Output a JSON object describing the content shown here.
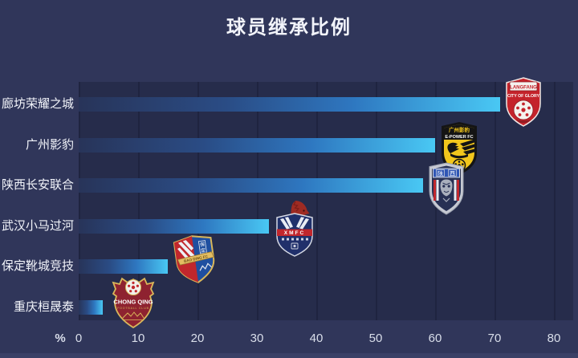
{
  "title": "球员继承比例",
  "chart_data": {
    "type": "bar",
    "orientation": "horizontal",
    "title": "球员继承比例",
    "categories": [
      "廊坊荣耀之城",
      "广州影豹",
      "陕西长安联合",
      "武汉小马过河",
      "保定靴城竞技",
      "重庆桓晟泰"
    ],
    "values": [
      71,
      60,
      58,
      32,
      15,
      4
    ],
    "unit": "%",
    "xlabel": "%",
    "xlim": [
      0,
      80
    ],
    "x_ticks": [
      "0",
      "10",
      "20",
      "30",
      "40",
      "50",
      "60",
      "70",
      "80"
    ],
    "grid": "vertical-lines",
    "legend": "none",
    "bar_color_gradient": [
      "#283459",
      "#2E77C0",
      "#49C8F4"
    ]
  },
  "colors": {
    "page_background": "#30365A",
    "plot_background": "#262C4B",
    "gridline": "#1F2440",
    "title_text": "#F2F4FA",
    "tick_text": "#D9DEEA",
    "bar_tip": "#49C8F4",
    "bottom_strip": "#3A4066"
  },
  "badges": [
    {
      "club": "廊坊荣耀之城",
      "line1": "LANGFANG",
      "line2": "CITY OF GLORY",
      "main_color": "#C4232B"
    },
    {
      "club": "广州影豹",
      "line1": "广州影豹",
      "line2": "E-POWER FC",
      "main_color": "#F2C61C"
    },
    {
      "club": "陕西长安联合",
      "line1": "陕",
      "line2": "西",
      "main_color": "#2F56B5"
    },
    {
      "club": "武汉小马过河",
      "line1": "XMFC",
      "main_color": "#20306B"
    },
    {
      "club": "保定靴城竞技",
      "line1": "保",
      "line1b": "定",
      "line2": "BAO DING FC",
      "main_color": "#1F4FA0"
    },
    {
      "club": "重庆桓晟泰",
      "line1": "CHONG QING",
      "line2": "FOOTBALL CLUB",
      "main_color": "#8E2230"
    }
  ]
}
